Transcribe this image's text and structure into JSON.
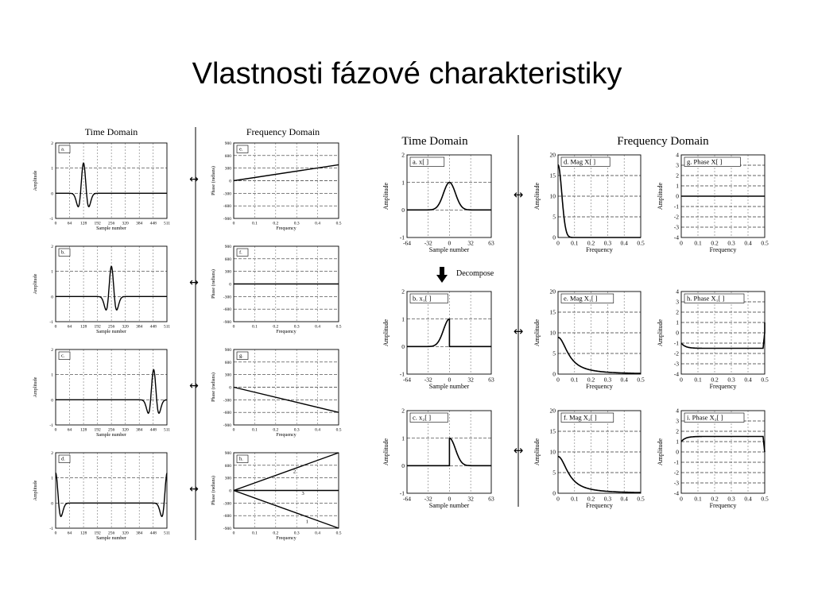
{
  "slide": {
    "title": "Vlastnosti fázové charakteristiky"
  },
  "left_figure": {
    "time_header": "Time Domain",
    "freq_header": "Frequency Domain",
    "arrow": "↔",
    "time_xlabel": "Sample number",
    "time_ylabel": "Amplitude",
    "freq_xlabel": "Frequency",
    "freq_ylabel": "Phase (radians)"
  },
  "right_figure": {
    "time_header": "Time Domain",
    "freq_header": "Frequency Domain",
    "arrow": "↔",
    "decompose_label": "Decompose",
    "time_xlabel": "Sample number",
    "time_ylabel": "Amplitude",
    "freq_xlabel": "Frequency",
    "freq_ylabel": "Amplitude"
  },
  "chart_data": [
    {
      "id": "L-a",
      "type": "line",
      "panel_label": "a.",
      "xlim": [
        0,
        511
      ],
      "ylim": [
        -1,
        2
      ],
      "xticks": [
        0,
        64,
        128,
        192,
        256,
        320,
        384,
        448,
        511
      ],
      "yticks": [
        -1,
        0,
        1,
        2
      ],
      "shape": {
        "kind": "pulse",
        "center": 128,
        "width": 14
      }
    },
    {
      "id": "L-e",
      "type": "line",
      "panel_label": "e.",
      "xlim": [
        0,
        0.5
      ],
      "ylim": [
        -900,
        900
      ],
      "xticks": [
        0,
        0.1,
        0.2,
        0.3,
        0.4,
        0.5
      ],
      "yticks": [
        -900,
        -600,
        -300,
        0,
        300,
        600,
        900
      ],
      "shape": {
        "kind": "lines",
        "lines": [
          {
            "x": [
              0,
              0.5
            ],
            "y": [
              0,
              380
            ]
          }
        ]
      }
    },
    {
      "id": "L-b",
      "type": "line",
      "panel_label": "b.",
      "xlim": [
        0,
        511
      ],
      "ylim": [
        -1,
        2
      ],
      "xticks": [
        0,
        64,
        128,
        192,
        256,
        320,
        384,
        448,
        511
      ],
      "yticks": [
        -1,
        0,
        1,
        2
      ],
      "shape": {
        "kind": "pulse",
        "center": 256,
        "width": 14
      }
    },
    {
      "id": "L-f",
      "type": "line",
      "panel_label": "f.",
      "xlim": [
        0,
        0.5
      ],
      "ylim": [
        -900,
        900
      ],
      "xticks": [
        0,
        0.1,
        0.2,
        0.3,
        0.4,
        0.5
      ],
      "yticks": [
        -900,
        -600,
        -300,
        0,
        300,
        600,
        900
      ],
      "shape": {
        "kind": "lines",
        "lines": [
          {
            "x": [
              0,
              0.5
            ],
            "y": [
              0,
              0
            ]
          }
        ]
      }
    },
    {
      "id": "L-c",
      "type": "line",
      "panel_label": "c.",
      "xlim": [
        0,
        511
      ],
      "ylim": [
        -1,
        2
      ],
      "xticks": [
        0,
        64,
        128,
        192,
        256,
        320,
        384,
        448,
        511
      ],
      "yticks": [
        -1,
        0,
        1,
        2
      ],
      "shape": {
        "kind": "pulse",
        "center": 450,
        "width": 14
      }
    },
    {
      "id": "L-g",
      "type": "line",
      "panel_label": "g.",
      "xlim": [
        0,
        0.5
      ],
      "ylim": [
        -900,
        900
      ],
      "xticks": [
        0,
        0.1,
        0.2,
        0.3,
        0.4,
        0.5
      ],
      "yticks": [
        -900,
        -600,
        -300,
        0,
        300,
        600,
        900
      ],
      "shape": {
        "kind": "lines",
        "lines": [
          {
            "x": [
              0,
              0.5
            ],
            "y": [
              0,
              -600
            ]
          }
        ]
      }
    },
    {
      "id": "L-d",
      "type": "line",
      "panel_label": "d.",
      "xlim": [
        0,
        511
      ],
      "ylim": [
        -1,
        2
      ],
      "xticks": [
        0,
        64,
        128,
        192,
        256,
        320,
        384,
        448,
        511
      ],
      "yticks": [
        -1,
        0,
        1,
        2
      ],
      "shape": {
        "kind": "wrap",
        "width": 14
      }
    },
    {
      "id": "L-h",
      "type": "line",
      "panel_label": "h.",
      "xlim": [
        0,
        0.5
      ],
      "ylim": [
        -900,
        900
      ],
      "xticks": [
        0,
        0.1,
        0.2,
        0.3,
        0.4,
        0.5
      ],
      "yticks": [
        -900,
        -600,
        -300,
        0,
        300,
        600,
        900
      ],
      "shape": {
        "kind": "lines",
        "lines": [
          {
            "x": [
              0,
              0.5
            ],
            "y": [
              0,
              900
            ],
            "label": "2",
            "lx": 0.29,
            "ly": 420
          },
          {
            "x": [
              0,
              0.5
            ],
            "y": [
              0,
              0
            ],
            "label": "3",
            "lx": 0.33,
            "ly": -100
          },
          {
            "x": [
              0,
              0.5
            ],
            "y": [
              0,
              -900
            ],
            "label": "1",
            "lx": 0.35,
            "ly": -780
          }
        ]
      }
    },
    {
      "id": "R-a",
      "type": "line",
      "panel_label": "a.  x[ ]",
      "xlim": [
        -64,
        63
      ],
      "ylim": [
        -1,
        2
      ],
      "xticks": [
        -64,
        -32,
        0,
        32,
        63
      ],
      "yticks": [
        -1,
        0,
        1,
        2
      ],
      "shape": {
        "kind": "gauss",
        "center": 0,
        "width": 9
      }
    },
    {
      "id": "R-d",
      "type": "line",
      "panel_label": "d.  Mag X[ ]",
      "xlim": [
        0,
        0.5
      ],
      "ylim": [
        0,
        20
      ],
      "xticks": [
        0,
        0.1,
        0.2,
        0.3,
        0.4,
        0.5
      ],
      "yticks": [
        0,
        5,
        10,
        15,
        20
      ],
      "shape": {
        "kind": "magfull"
      }
    },
    {
      "id": "R-g",
      "type": "line",
      "panel_label": "g.  Phase X[ ]",
      "xlim": [
        0,
        0.5
      ],
      "ylim": [
        -4,
        4
      ],
      "xticks": [
        0,
        0.1,
        0.2,
        0.3,
        0.4,
        0.5
      ],
      "yticks": [
        -4,
        -3,
        -2,
        -1,
        0,
        1,
        2,
        3,
        4
      ],
      "shape": {
        "kind": "lines",
        "lines": [
          {
            "x": [
              0,
              0.5
            ],
            "y": [
              0,
              0
            ]
          }
        ]
      }
    },
    {
      "id": "R-b",
      "type": "line",
      "panel_label": "b.  x₁[ ]",
      "xlim": [
        -64,
        63
      ],
      "ylim": [
        -1,
        2
      ],
      "xticks": [
        -64,
        -32,
        0,
        32,
        63
      ],
      "yticks": [
        -1,
        0,
        1,
        2
      ],
      "shape": {
        "kind": "halfleft",
        "width": 9
      }
    },
    {
      "id": "R-e",
      "type": "line",
      "panel_label": "e.  Mag X₁[ ]",
      "xlim": [
        0,
        0.5
      ],
      "ylim": [
        0,
        20
      ],
      "xticks": [
        0,
        0.1,
        0.2,
        0.3,
        0.4,
        0.5
      ],
      "yticks": [
        0,
        5,
        10,
        15,
        20
      ],
      "shape": {
        "kind": "maghalf"
      }
    },
    {
      "id": "R-h",
      "type": "line",
      "panel_label": "h.  Phase X₁[ ]",
      "xlim": [
        0,
        0.5
      ],
      "ylim": [
        -4,
        4
      ],
      "xticks": [
        0,
        0.1,
        0.2,
        0.3,
        0.4,
        0.5
      ],
      "yticks": [
        -4,
        -3,
        -2,
        -1,
        0,
        1,
        2,
        3,
        4
      ],
      "shape": {
        "kind": "phase",
        "sign": -1
      }
    },
    {
      "id": "R-c",
      "type": "line",
      "panel_label": "c.  x₂[ ]",
      "xlim": [
        -64,
        63
      ],
      "ylim": [
        -1,
        2
      ],
      "xticks": [
        -64,
        -32,
        0,
        32,
        63
      ],
      "yticks": [
        -1,
        0,
        1,
        2
      ],
      "shape": {
        "kind": "halfright",
        "width": 9
      }
    },
    {
      "id": "R-f",
      "type": "line",
      "panel_label": "f.  Mag X₂[ ]",
      "xlim": [
        0,
        0.5
      ],
      "ylim": [
        0,
        20
      ],
      "xticks": [
        0,
        0.1,
        0.2,
        0.3,
        0.4,
        0.5
      ],
      "yticks": [
        0,
        5,
        10,
        15,
        20
      ],
      "shape": {
        "kind": "maghalf"
      }
    },
    {
      "id": "R-i",
      "type": "line",
      "panel_label": "i.  Phase X₂[ ]",
      "xlim": [
        0,
        0.5
      ],
      "ylim": [
        -4,
        4
      ],
      "xticks": [
        0,
        0.1,
        0.2,
        0.3,
        0.4,
        0.5
      ],
      "yticks": [
        -4,
        -3,
        -2,
        -1,
        0,
        1,
        2,
        3,
        4
      ],
      "shape": {
        "kind": "phase",
        "sign": 1
      }
    }
  ]
}
